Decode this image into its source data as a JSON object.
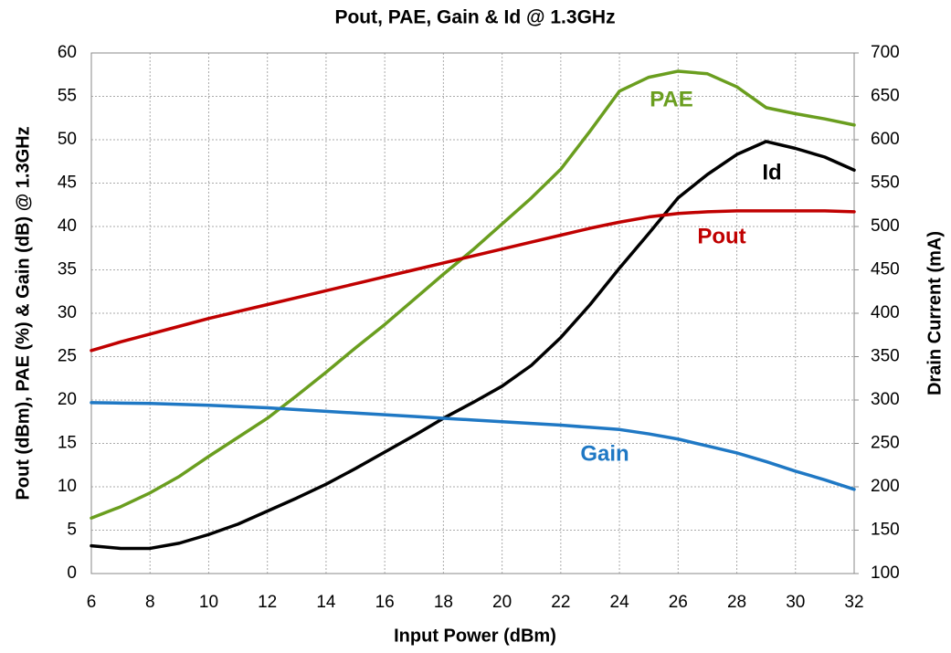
{
  "chart_data": {
    "type": "line",
    "title": "Pout, PAE, Gain & Id @ 1.3GHz",
    "x_label": "Input Power (dBm)",
    "y_label": "Pout (dBm), PAE (%) & Gain (dB) @ 1.3GHz",
    "y2_label": "Drain Current (mA)",
    "x": [
      6,
      7,
      8,
      9,
      10,
      11,
      12,
      13,
      14,
      15,
      16,
      17,
      18,
      19,
      20,
      21,
      22,
      23,
      24,
      25,
      26,
      27,
      28,
      29,
      30,
      31,
      32
    ],
    "xlim": [
      6,
      32
    ],
    "xticks": [
      6,
      8,
      10,
      12,
      14,
      16,
      18,
      20,
      22,
      24,
      26,
      28,
      30,
      32
    ],
    "ylim": [
      0,
      60
    ],
    "yticks": [
      0,
      5,
      10,
      15,
      20,
      25,
      30,
      35,
      40,
      45,
      50,
      55,
      60
    ],
    "y2lim": [
      100,
      700
    ],
    "y2ticks": [
      100,
      150,
      200,
      250,
      300,
      350,
      400,
      450,
      500,
      550,
      600,
      650,
      700
    ],
    "grid": true,
    "series": [
      {
        "name": "PAE",
        "color": "#6a9e1f",
        "values": [
          6.4,
          7.7,
          9.3,
          11.2,
          13.5,
          15.7,
          17.9,
          20.5,
          23.2,
          26.0,
          28.7,
          31.6,
          34.5,
          37.3,
          40.3,
          43.3,
          46.6,
          51.0,
          55.6,
          57.2,
          57.9,
          57.6,
          56.1,
          53.7,
          53.0,
          52.4,
          51.7
        ]
      },
      {
        "name": "Id",
        "color": "#000000",
        "axis": "y2",
        "values": [
          132,
          129,
          129,
          135,
          145,
          157,
          172,
          187,
          203,
          221,
          240,
          259,
          279,
          297,
          316,
          340,
          372,
          410,
          452,
          492,
          533,
          560,
          583,
          598,
          590,
          580,
          565
        ]
      },
      {
        "name": "Pout",
        "color": "#c00000",
        "values": [
          25.7,
          26.7,
          27.6,
          28.5,
          29.4,
          30.2,
          31.0,
          31.8,
          32.6,
          33.4,
          34.2,
          35.0,
          35.8,
          36.6,
          37.4,
          38.2,
          39.0,
          39.8,
          40.5,
          41.1,
          41.5,
          41.7,
          41.8,
          41.8,
          41.8,
          41.8,
          41.7
        ]
      },
      {
        "name": "Gain",
        "color": "#1f78c4",
        "values": [
          19.7,
          19.65,
          19.6,
          19.5,
          19.4,
          19.25,
          19.1,
          18.9,
          18.7,
          18.5,
          18.3,
          18.1,
          17.9,
          17.7,
          17.5,
          17.3,
          17.1,
          16.85,
          16.6,
          16.1,
          15.5,
          14.7,
          13.9,
          12.9,
          11.8,
          10.8,
          9.7
        ]
      }
    ]
  }
}
